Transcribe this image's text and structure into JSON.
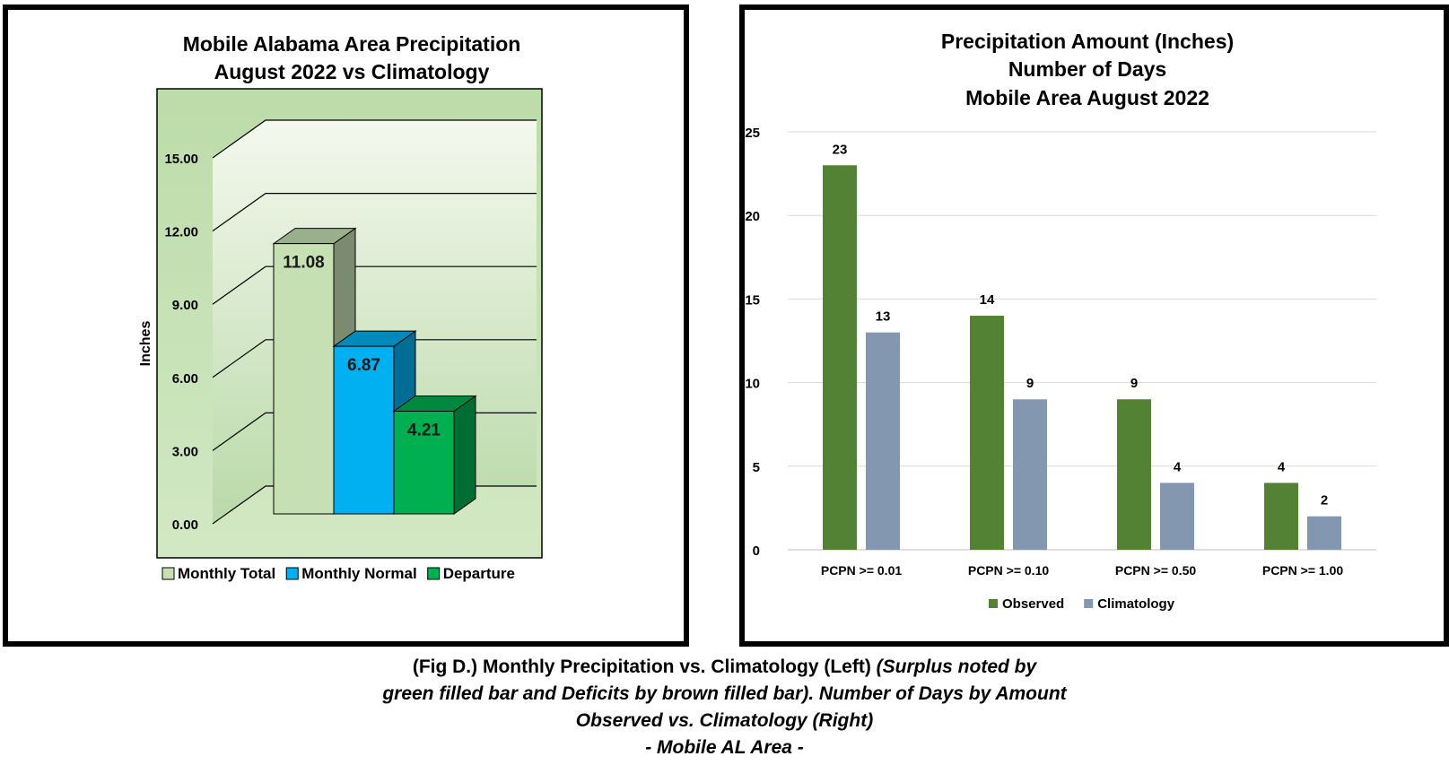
{
  "left_chart": {
    "title_line1": "Mobile Alabama Area Precipitation",
    "title_line2": "August 2022 vs Climatology",
    "ylabel": "Inches",
    "ticks": [
      "0.00",
      "3.00",
      "6.00",
      "9.00",
      "12.00",
      "15.00"
    ],
    "legend": [
      "Monthly Total",
      "Monthly Normal",
      "Departure"
    ]
  },
  "right_chart": {
    "title_line1": "Precipitation Amount (Inches)",
    "title_line2": "Number of Days",
    "title_line3": "Mobile Area August 2022",
    "ticks": [
      "0",
      "5",
      "10",
      "15",
      "20",
      "25"
    ],
    "legend": [
      "Observed",
      "Climatology"
    ]
  },
  "caption": {
    "line1_plain": "(Fig D.) Monthly Precipitation vs. Climatology (Left) ",
    "line1_italic": "(Surplus noted by",
    "line2": "green filled bar and Deficits by brown filled bar). Number of Days by Amount",
    "line3": "Observed vs. Climatology (Right)",
    "line4": "- Mobile AL Area -"
  },
  "colors": {
    "monthly_total": "#c6e0b4",
    "monthly_normal": "#00b0f0",
    "departure": "#00b050",
    "observed": "#548235",
    "climatology": "#8497b0"
  },
  "chart_data": [
    {
      "type": "bar",
      "title": "Mobile Alabama Area Precipitation August 2022 vs Climatology",
      "ylabel": "Inches",
      "ylim": [
        0,
        15
      ],
      "categories": [
        "Monthly Total",
        "Monthly Normal",
        "Departure"
      ],
      "values": [
        11.08,
        6.87,
        4.21
      ],
      "labels": [
        "11.08",
        "6.87",
        "4.21"
      ],
      "legend_position": "bottom",
      "grid": true
    },
    {
      "type": "bar",
      "title": "Precipitation Amount (Inches) Number of Days Mobile Area August 2022",
      "ylim": [
        0,
        25
      ],
      "categories": [
        "PCPN >= 0.01",
        "PCPN >= 0.10",
        "PCPN >= 0.50",
        "PCPN >= 1.00"
      ],
      "series": [
        {
          "name": "Observed",
          "values": [
            23,
            14,
            9,
            4
          ]
        },
        {
          "name": "Climatology",
          "values": [
            13,
            9,
            4,
            2
          ]
        }
      ],
      "legend_position": "bottom",
      "grid": true
    }
  ]
}
